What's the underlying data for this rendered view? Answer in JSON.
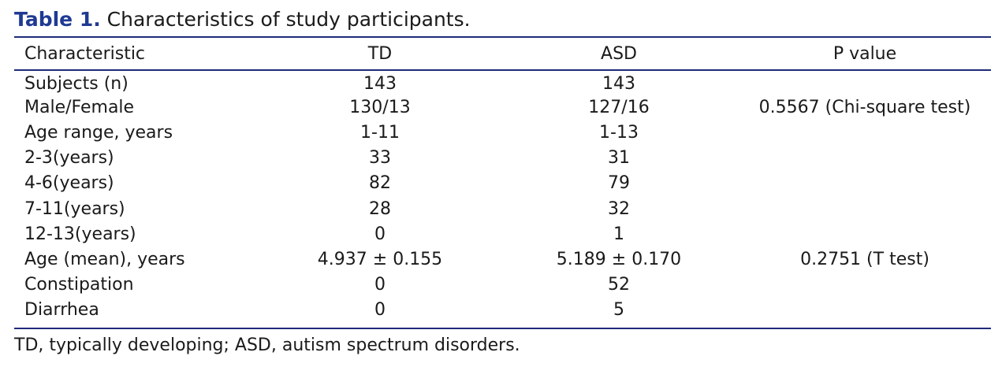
{
  "caption": {
    "label": "Table 1.",
    "text": "Characteristics of study participants."
  },
  "table": {
    "columns": [
      "Characteristic",
      "TD",
      "ASD",
      "P value"
    ],
    "rows": [
      [
        "Subjects (n)",
        "143",
        "143",
        ""
      ],
      [
        "Male/Female",
        "130/13",
        "127/16",
        "0.5567 (Chi-square test)"
      ],
      [
        "Age range, years",
        "1-11",
        "1-13",
        ""
      ],
      [
        "2-3(years)",
        "33",
        "31",
        ""
      ],
      [
        "4-6(years)",
        "82",
        "79",
        ""
      ],
      [
        "7-11(years)",
        "28",
        "32",
        ""
      ],
      [
        "12-13(years)",
        "0",
        "1",
        ""
      ],
      [
        "Age (mean), years",
        "4.937 ± 0.155",
        "5.189 ± 0.170",
        "0.2751 (T test)"
      ],
      [
        "Constipation",
        "0",
        "52",
        ""
      ],
      [
        "Diarrhea",
        "0",
        "5",
        ""
      ]
    ]
  },
  "footnote": "TD, typically developing; ASD, autism spectrum disorders.",
  "colors": {
    "accent": "#1f3a93",
    "rule": "#1f2a7a",
    "text": "#1a1a1a"
  }
}
